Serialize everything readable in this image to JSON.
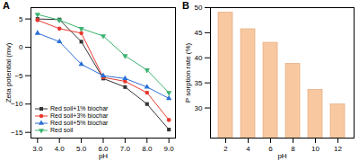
{
  "chart_data": [
    {
      "type": "line",
      "title": "A",
      "x_label": "pH",
      "y_label": "Zeta potential (mv)",
      "x": [
        3,
        4,
        5,
        6,
        7,
        8,
        9
      ],
      "xlim": [
        2.7,
        9.3
      ],
      "xticks": [
        3,
        4,
        5,
        6,
        7,
        8,
        9
      ],
      "ylim": [
        -16,
        7
      ],
      "yticks": [
        -15,
        -10,
        -5,
        0,
        5
      ],
      "grid": false,
      "legend": "bottom-left",
      "series": [
        {
          "name": "Red soil+1% biochar",
          "color": "#333333",
          "marker": "square",
          "values": [
            5.0,
            4.9,
            1.0,
            -5.5,
            -7.0,
            -10.0,
            -14.5
          ]
        },
        {
          "name": "Red soil+3% biochar",
          "color": "#e8392f",
          "marker": "circle",
          "values": [
            4.8,
            3.3,
            2.5,
            -5.3,
            -6.0,
            -8.0,
            -12.8
          ]
        },
        {
          "name": "Red soil+5% biochar",
          "color": "#2a6fd6",
          "marker": "triangle",
          "values": [
            2.5,
            1.0,
            -3.0,
            -5.0,
            -5.5,
            -7.0,
            -9.0
          ]
        },
        {
          "name": "Red soil",
          "color": "#3cb371",
          "marker": "triangle-down",
          "values": [
            5.8,
            4.8,
            3.3,
            2.0,
            -1.5,
            -4.0,
            -8.0
          ]
        }
      ]
    },
    {
      "type": "bar",
      "title": "B",
      "x_label": "pH",
      "y_label": "P sorption rate (%)",
      "categories": [
        "2",
        "4",
        "6",
        "8",
        "10",
        "12"
      ],
      "values": [
        49.0,
        45.7,
        43.0,
        38.8,
        33.6,
        30.7
      ],
      "color": "#f8c9a0",
      "ylim": [
        24,
        50
      ],
      "yticks": [
        30,
        35,
        40,
        45,
        50
      ],
      "grid": false
    }
  ]
}
